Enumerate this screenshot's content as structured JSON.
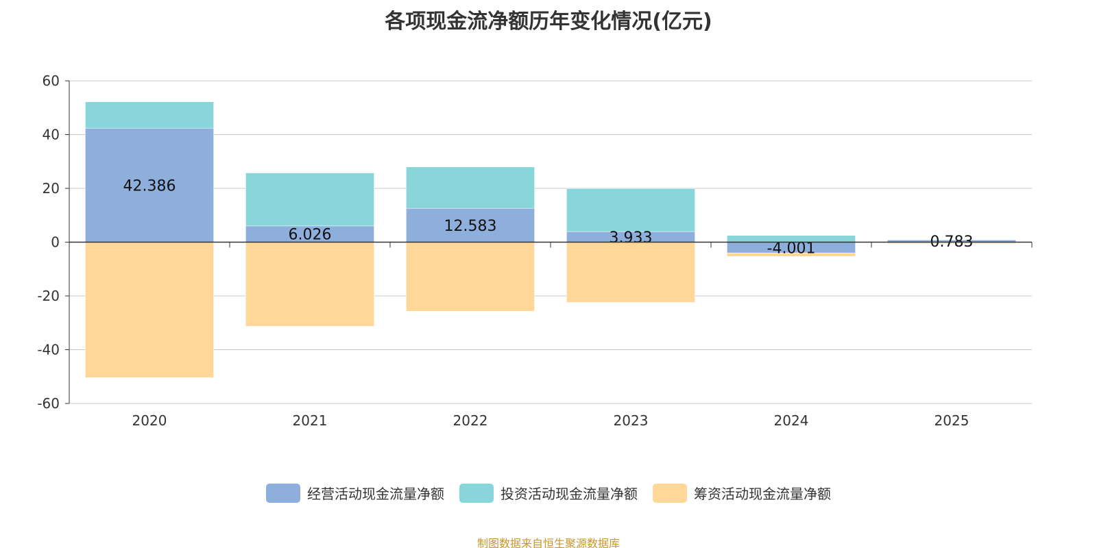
{
  "chart_data": {
    "type": "bar",
    "stacked": true,
    "title": "各项现金流净额历年变化情况(亿元)",
    "categories": [
      "2020",
      "2021",
      "2022",
      "2023",
      "2024",
      "2025"
    ],
    "ylim": [
      -60,
      60
    ],
    "yticks": [
      60,
      40,
      20,
      0,
      -20,
      -40,
      -60
    ],
    "grid": true,
    "legend_position": "bottom",
    "series": [
      {
        "name": "经营活动现金流量净额",
        "color": "#8eaedb",
        "values": [
          42.386,
          6.026,
          12.583,
          3.933,
          -4.001,
          0.783
        ],
        "labels": [
          "42.386",
          "6.026",
          "12.583",
          "3.933",
          "-4.001",
          "0.783"
        ]
      },
      {
        "name": "投资活动现金流量净额",
        "color": "#88d6da",
        "values": [
          9.8,
          19.7,
          15.4,
          16.0,
          2.5,
          -0.3
        ]
      },
      {
        "name": "筹资活动现金流量净额",
        "color": "#ffd899",
        "values": [
          -50.4,
          -31.3,
          -25.7,
          -22.4,
          -1.3,
          -0.3
        ]
      }
    ]
  },
  "source": "制图数据来自恒生聚源数据库"
}
